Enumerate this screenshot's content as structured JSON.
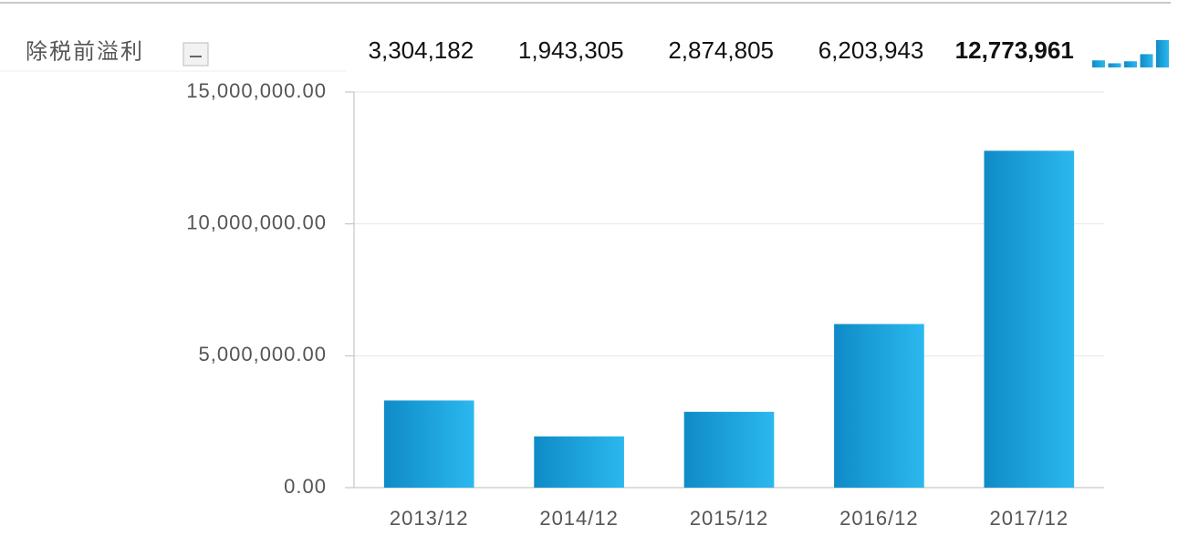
{
  "chart_data": {
    "type": "bar",
    "title": "除税前溢利",
    "categories": [
      "2013/12",
      "2014/12",
      "2015/12",
      "2016/12",
      "2017/12"
    ],
    "values": [
      3304182,
      1943305,
      2874805,
      6203943,
      12773961
    ],
    "value_labels": [
      "3,304,182",
      "1,943,305",
      "2,874,805",
      "6,203,943",
      "12,773,961"
    ],
    "ylim": [
      0,
      15000000
    ],
    "yticks": [
      {
        "value": 0,
        "label": "0.00"
      },
      {
        "value": 5000000,
        "label": "5,000,000.00"
      },
      {
        "value": 10000000,
        "label": "10,000,000.00"
      },
      {
        "value": 15000000,
        "label": "15,000,000.00"
      }
    ],
    "grid": true,
    "gradient": [
      "#0f8bc7",
      "#2bb8ef"
    ]
  }
}
